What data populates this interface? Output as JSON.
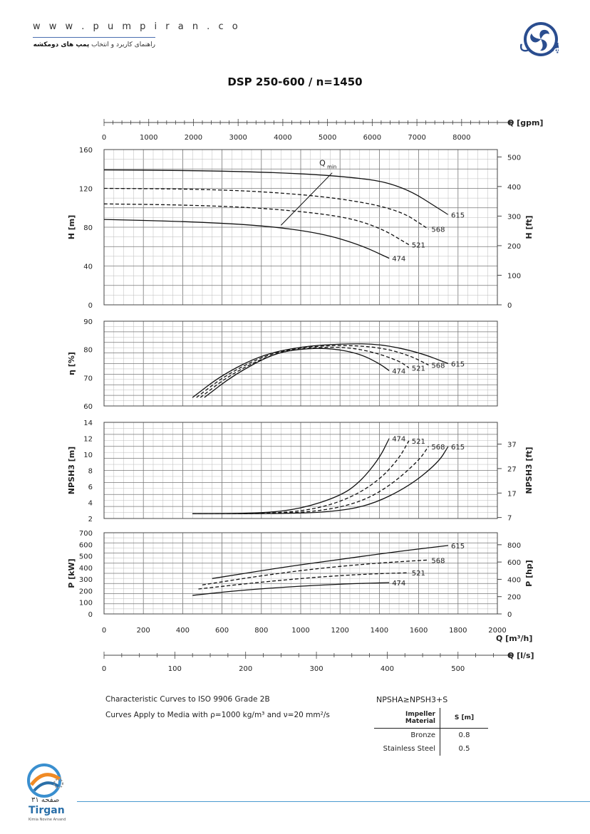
{
  "header": {
    "url": "w w w . p u m p i r a n . c o",
    "subtitle_prefix": "راهنمای کاربرد و انتخاب",
    "subtitle_bold": "پمپ های دومکشه",
    "brand_name": "پمپیران"
  },
  "footer": {
    "page_label": "صفحه ۳۱",
    "brand": "Tirgan",
    "tagline": "Kimia Novine Arvand"
  },
  "notes": {
    "line1": "Characteristic Curves to ISO 9906 Grade 2B",
    "line2": "Curves Apply to Media with  ρ=1000 kg/m³ and ν=20 mm²/s",
    "npsh_rule": "NPSHA≥NPSH3+S",
    "table": {
      "headers": [
        "Impeller Material",
        "S [m]"
      ],
      "rows": [
        [
          "Bronze",
          "0.8"
        ],
        [
          "Stainless Steel",
          "0.5"
        ]
      ]
    }
  },
  "chart_data": {
    "type": "line",
    "title": "DSP 250-600 / n=1450",
    "x_axes": [
      {
        "label": "Q [gpm]",
        "ticks": [
          0,
          1000,
          2000,
          3000,
          4000,
          5000,
          6000,
          7000,
          8000
        ],
        "range": [
          0,
          8800
        ]
      },
      {
        "label": "Q [m³/h]",
        "ticks": [
          0,
          200,
          400,
          600,
          800,
          1000,
          1200,
          1400,
          1600,
          1800,
          2000
        ],
        "range": [
          0,
          2000
        ]
      },
      {
        "label": "Q [l/s]",
        "ticks": [
          0,
          100,
          200,
          300,
          400,
          500
        ],
        "range": [
          0,
          555.6
        ]
      }
    ],
    "qmin_label": "Q",
    "qmin_sub": "min",
    "qmin_line": [
      [
        1160,
        136
      ],
      [
        900,
        82
      ]
    ],
    "panels": [
      {
        "id": "head",
        "ylabel": "H [m]",
        "ylim": [
          0,
          160
        ],
        "yticks": [
          0,
          40,
          80,
          120,
          160
        ],
        "y2label": "H [ft]",
        "y2lim": [
          0,
          524.9
        ],
        "y2ticks": [
          0,
          100,
          200,
          300,
          400,
          500
        ],
        "series": [
          {
            "name": "615",
            "dash": false,
            "points": [
              [
                0,
                139
              ],
              [
                400,
                138.5
              ],
              [
                800,
                137
              ],
              [
                1200,
                133
              ],
              [
                1500,
                125
              ],
              [
                1750,
                93
              ]
            ]
          },
          {
            "name": "568",
            "dash": true,
            "points": [
              [
                0,
                120
              ],
              [
                400,
                119.5
              ],
              [
                800,
                117
              ],
              [
                1200,
                110
              ],
              [
                1500,
                98
              ],
              [
                1650,
                78
              ]
            ]
          },
          {
            "name": "521",
            "dash": true,
            "points": [
              [
                0,
                104
              ],
              [
                400,
                103
              ],
              [
                800,
                100
              ],
              [
                1200,
                92
              ],
              [
                1400,
                80
              ],
              [
                1550,
                62
              ]
            ]
          },
          {
            "name": "474",
            "dash": false,
            "points": [
              [
                0,
                88
              ],
              [
                400,
                86
              ],
              [
                800,
                82
              ],
              [
                1100,
                74
              ],
              [
                1300,
                62
              ],
              [
                1450,
                48
              ]
            ]
          }
        ]
      },
      {
        "id": "efficiency",
        "ylabel": "η [%]",
        "ylim": [
          60,
          90
        ],
        "yticks": [
          60,
          70,
          80,
          90
        ],
        "series": [
          {
            "name": "615",
            "dash": false,
            "points": [
              [
                450,
                63
              ],
              [
                600,
                71
              ],
              [
                800,
                78
              ],
              [
                1000,
                81
              ],
              [
                1200,
                82
              ],
              [
                1400,
                82
              ],
              [
                1600,
                79
              ],
              [
                1750,
                75
              ]
            ]
          },
          {
            "name": "568",
            "dash": true,
            "points": [
              [
                470,
                63
              ],
              [
                620,
                71
              ],
              [
                820,
                78
              ],
              [
                1000,
                80.7
              ],
              [
                1200,
                81.6
              ],
              [
                1400,
                80.8
              ],
              [
                1550,
                78
              ],
              [
                1650,
                74.5
              ]
            ]
          },
          {
            "name": "521",
            "dash": true,
            "points": [
              [
                490,
                63
              ],
              [
                640,
                71
              ],
              [
                840,
                78
              ],
              [
                1000,
                80.4
              ],
              [
                1200,
                81
              ],
              [
                1350,
                79.5
              ],
              [
                1500,
                76
              ],
              [
                1550,
                73.5
              ]
            ]
          },
          {
            "name": "474",
            "dash": false,
            "points": [
              [
                510,
                63
              ],
              [
                660,
                71
              ],
              [
                860,
                78.5
              ],
              [
                1000,
                80.2
              ],
              [
                1150,
                80.5
              ],
              [
                1300,
                78.5
              ],
              [
                1400,
                75
              ],
              [
                1450,
                72.5
              ]
            ]
          }
        ]
      },
      {
        "id": "npsh",
        "ylabel": "NPSH3 [m]",
        "ylim": [
          2,
          14
        ],
        "yticks": [
          2,
          4,
          6,
          8,
          10,
          12,
          14
        ],
        "y2label": "NPSH3 [ft]",
        "y2lim": [
          6.6,
          45.9
        ],
        "y2ticks": [
          7,
          17,
          27,
          37
        ],
        "series": [
          {
            "name": "474",
            "dash": false,
            "points": [
              [
                450,
                2.6
              ],
              [
                800,
                2.65
              ],
              [
                1000,
                3.2
              ],
              [
                1200,
                4.8
              ],
              [
                1300,
                6.5
              ],
              [
                1400,
                9.5
              ],
              [
                1450,
                12
              ]
            ]
          },
          {
            "name": "521",
            "dash": true,
            "points": [
              [
                450,
                2.6
              ],
              [
                800,
                2.6
              ],
              [
                1050,
                3
              ],
              [
                1250,
                4.5
              ],
              [
                1400,
                6.8
              ],
              [
                1500,
                9.5
              ],
              [
                1550,
                11.7
              ]
            ]
          },
          {
            "name": "568",
            "dash": true,
            "points": [
              [
                450,
                2.6
              ],
              [
                850,
                2.6
              ],
              [
                1100,
                2.9
              ],
              [
                1300,
                4
              ],
              [
                1450,
                6
              ],
              [
                1600,
                9.2
              ],
              [
                1650,
                11
              ]
            ]
          },
          {
            "name": "615",
            "dash": false,
            "points": [
              [
                450,
                2.6
              ],
              [
                900,
                2.6
              ],
              [
                1150,
                2.8
              ],
              [
                1350,
                3.6
              ],
              [
                1550,
                6
              ],
              [
                1700,
                9
              ],
              [
                1750,
                11
              ]
            ]
          }
        ]
      },
      {
        "id": "power",
        "ylabel": "P [kW]",
        "ylim": [
          0,
          700
        ],
        "yticks": [
          0,
          100,
          200,
          300,
          400,
          500,
          600,
          700
        ],
        "y2label": "P [hp]",
        "y2lim": [
          0,
          938.7
        ],
        "y2ticks": [
          0,
          200,
          400,
          600,
          800
        ],
        "series": [
          {
            "name": "615",
            "dash": false,
            "points": [
              [
                550,
                305
              ],
              [
                900,
                400
              ],
              [
                1200,
                470
              ],
              [
                1500,
                540
              ],
              [
                1750,
                590
              ]
            ]
          },
          {
            "name": "568",
            "dash": true,
            "points": [
              [
                500,
                250
              ],
              [
                800,
                330
              ],
              [
                1100,
                395
              ],
              [
                1400,
                440
              ],
              [
                1650,
                465
              ]
            ]
          },
          {
            "name": "521",
            "dash": true,
            "points": [
              [
                480,
                215
              ],
              [
                800,
                275
              ],
              [
                1100,
                320
              ],
              [
                1350,
                345
              ],
              [
                1550,
                355
              ]
            ]
          },
          {
            "name": "474",
            "dash": false,
            "points": [
              [
                450,
                160
              ],
              [
                700,
                205
              ],
              [
                1000,
                240
              ],
              [
                1250,
                260
              ],
              [
                1450,
                270
              ]
            ]
          }
        ]
      }
    ]
  }
}
